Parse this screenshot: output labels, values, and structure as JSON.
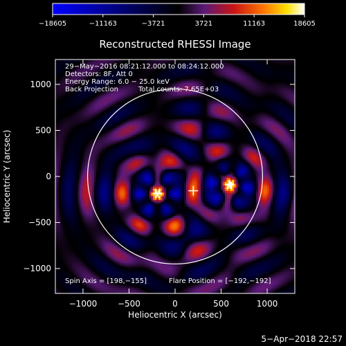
{
  "chart_data": {
    "type": "heatmap",
    "title": "Reconstructed RHESSI Image",
    "xlabel": "Heliocentric X (arcsec)",
    "ylabel": "Heliocentric Y (arcsec)",
    "xlim": [
      -1300,
      1300
    ],
    "ylim": [
      -1270,
      1270
    ],
    "x_ticks": [
      -1000,
      -500,
      0,
      500,
      1000
    ],
    "y_ticks": [
      -1000,
      -500,
      0,
      500,
      1000
    ],
    "x_tick_labels": [
      "−1000",
      "−500",
      "0",
      "500",
      "1000"
    ],
    "y_tick_labels": [
      "−1000",
      "−500",
      "0",
      "500",
      "1000"
    ],
    "colorbar": {
      "min": -18605,
      "max": 18605,
      "tick_labels": [
        "−18605",
        "−11163",
        "−3721",
        "3721",
        "11163",
        "18605"
      ],
      "colormap": [
        "#0000ff",
        "#000000",
        "#5a1a78",
        "#c81414",
        "#ff7800",
        "#ffe000",
        "#ffffff"
      ]
    },
    "annotations": [
      "29−May−2016 08:21:12.000 to 08:24:12.000",
      "Detectors: 8F, Att 0",
      "Energy Range: 6.0 − 25.0 keV",
      "Back Projection",
      "Total counts: 7.65E+03"
    ],
    "footer": {
      "spin_axis": "Spin Axis = [198,−155]",
      "flare_position": "Flare Position = [−192,−192]"
    },
    "solar_limb_radius": 950,
    "spin_axis_marker": [
      198,
      -155
    ],
    "sources": [
      {
        "x": -192,
        "y": -192,
        "peak": 18605
      },
      {
        "x": 600,
        "y": -90,
        "peak": 14500
      }
    ]
  },
  "timestamp": "5−Apr−2018 22:57"
}
